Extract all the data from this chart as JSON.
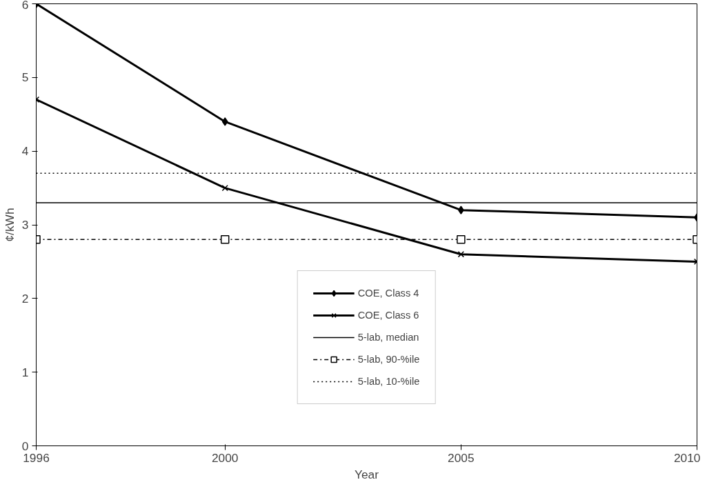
{
  "chart_data": {
    "type": "line",
    "xlabel": "Year",
    "ylabel": "¢/kWh",
    "x": [
      1996,
      2000,
      2005,
      2010
    ],
    "xlim": [
      1996,
      2010
    ],
    "xticks": [
      1996,
      2000,
      2005,
      2010
    ],
    "ylim": [
      0,
      6
    ],
    "yticks": [
      0,
      1,
      2,
      3,
      4,
      5,
      6
    ],
    "grid": false,
    "legend": "bottom",
    "series": [
      {
        "name": "COE, Class 4",
        "color": "#000000",
        "values": [
          6,
          4.4,
          3.2,
          3.1
        ],
        "marker": "diamond",
        "line_style": "solid"
      },
      {
        "name": "COE, Class 6",
        "color": "#000000",
        "values": [
          4.7,
          3.5,
          2.6,
          2.5
        ],
        "marker": "cross",
        "line_style": "solid"
      },
      {
        "name": "5-lab, median",
        "color": "#000000",
        "values": [
          3.3,
          3.3,
          3.3,
          3.3
        ],
        "marker": "none",
        "line_style": "solid"
      },
      {
        "name": "5-lab, 90-%ile",
        "color": "#000000",
        "values": [
          2.8,
          2.8,
          2.8,
          2.8
        ],
        "marker": "square",
        "line_style": "dashdot"
      },
      {
        "name": "5-lab, 10-%ile",
        "color": "#000000",
        "values": [
          3.7,
          3.7,
          3.7,
          3.7
        ],
        "marker": "none",
        "line_style": "dotted"
      }
    ]
  }
}
